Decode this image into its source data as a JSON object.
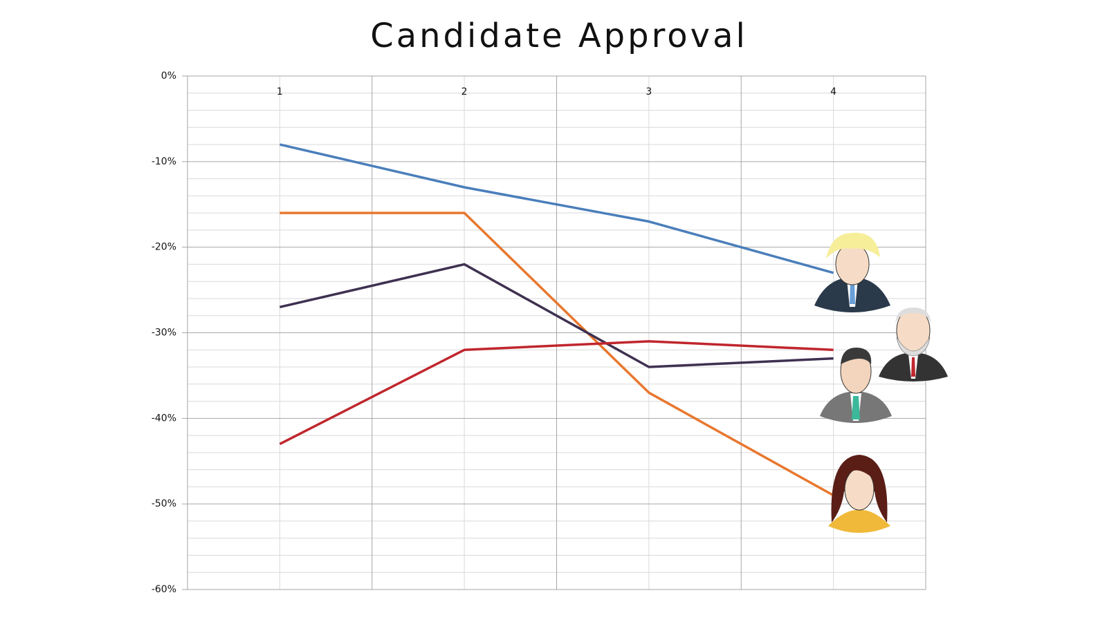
{
  "chart_data": {
    "type": "line",
    "title": "Candidate Approval",
    "categories": [
      "1",
      "2",
      "3",
      "4"
    ],
    "series": [
      {
        "color": "#4a7ebb",
        "values": [
          -8,
          -13,
          -17,
          -23
        ]
      },
      {
        "color": "#e8772e",
        "values": [
          -16,
          -16,
          -37,
          -49
        ]
      },
      {
        "color": "#3f3151",
        "values": [
          -27,
          -22,
          -34,
          -33
        ]
      },
      {
        "color": "#c0262d",
        "values": [
          -43,
          -32,
          -31,
          -32
        ]
      }
    ],
    "ylim": [
      -60,
      0
    ],
    "yticks": [
      {
        "value": 0,
        "label": "0%"
      },
      {
        "value": -10,
        "label": "-10%"
      },
      {
        "value": -20,
        "label": "-20%"
      },
      {
        "value": -30,
        "label": "-30%"
      },
      {
        "value": -40,
        "label": "-40%"
      },
      {
        "value": -50,
        "label": "-50%"
      },
      {
        "value": -60,
        "label": "-60%"
      }
    ],
    "grid": true
  }
}
